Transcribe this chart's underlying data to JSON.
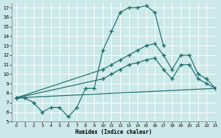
{
  "xlabel": "Humidex (Indice chaleur)",
  "bg_color": "#cce8e8",
  "grid_color": "#b0d8d8",
  "line_color": "#1a6e6a",
  "line1_x": [
    0,
    1,
    2,
    3,
    4,
    5,
    6,
    7,
    8,
    9,
    10,
    11,
    12,
    13,
    14,
    15,
    16,
    17
  ],
  "line1_y": [
    7.5,
    7.5,
    7.0,
    6.0,
    6.5,
    6.5,
    5.5,
    6.5,
    8.5,
    8.5,
    12.5,
    14.5,
    16.5,
    17.0,
    17.0,
    17.2,
    16.5,
    13.0
  ],
  "line2_x": [
    0,
    10,
    11,
    12,
    13,
    14,
    15,
    16,
    17,
    18,
    19,
    20,
    21,
    22,
    23
  ],
  "line2_y": [
    7.5,
    10.5,
    11.0,
    11.5,
    12.0,
    12.5,
    13.0,
    13.2,
    12.0,
    10.5,
    12.0,
    12.0,
    10.0,
    9.5,
    8.5
  ],
  "line3_x": [
    0,
    10,
    11,
    12,
    13,
    14,
    15,
    16,
    17,
    18,
    19,
    20,
    21,
    22,
    23
  ],
  "line3_y": [
    7.5,
    9.5,
    10.0,
    10.5,
    11.0,
    11.2,
    11.5,
    11.7,
    10.5,
    9.5,
    11.0,
    11.0,
    9.5,
    9.0,
    8.5
  ],
  "line4_x": [
    0,
    23
  ],
  "line4_y": [
    7.5,
    8.5
  ],
  "xlim": [
    -0.5,
    23
  ],
  "ylim": [
    5,
    17.5
  ],
  "yticks": [
    5,
    6,
    7,
    8,
    9,
    10,
    11,
    12,
    13,
    14,
    15,
    16,
    17
  ],
  "xticks": [
    0,
    1,
    2,
    3,
    4,
    5,
    6,
    7,
    8,
    9,
    10,
    11,
    12,
    13,
    14,
    15,
    16,
    17,
    18,
    19,
    20,
    21,
    22,
    23
  ]
}
